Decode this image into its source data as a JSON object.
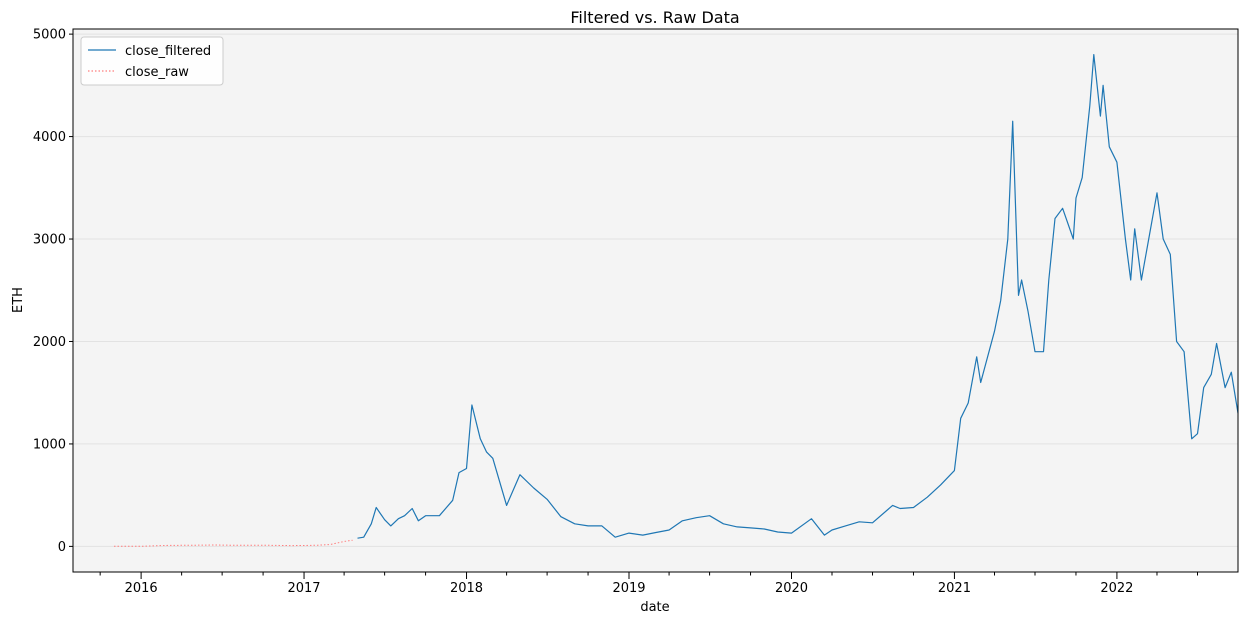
{
  "chart_data": {
    "type": "line",
    "title": "Filtered vs. Raw Data",
    "xlabel": "date",
    "ylabel": "ETH",
    "xlim": [
      "2015-08-01",
      "2022-09-30"
    ],
    "ylim": [
      -250,
      5050
    ],
    "x_ticks": [
      "2016",
      "2017",
      "2018",
      "2019",
      "2020",
      "2021",
      "2022"
    ],
    "y_ticks": [
      0,
      1000,
      2000,
      3000,
      4000,
      5000
    ],
    "grid": "horizontal",
    "legend": "top-left",
    "colors": {
      "filtered": "#1f77b4",
      "raw": "#ff7f7f",
      "background": "#f4f4f4"
    },
    "series": [
      {
        "name": "close_filtered",
        "style": "solid",
        "x": [
          "2017-05-01",
          "2017-05-15",
          "2017-06-01",
          "2017-06-12",
          "2017-07-01",
          "2017-07-15",
          "2017-08-01",
          "2017-08-15",
          "2017-09-01",
          "2017-09-15",
          "2017-10-01",
          "2017-11-01",
          "2017-12-01",
          "2017-12-15",
          "2018-01-01",
          "2018-01-13",
          "2018-02-01",
          "2018-02-15",
          "2018-03-01",
          "2018-04-01",
          "2018-05-01",
          "2018-06-01",
          "2018-07-01",
          "2018-08-01",
          "2018-09-01",
          "2018-10-01",
          "2018-11-01",
          "2018-12-01",
          "2019-01-01",
          "2019-02-01",
          "2019-03-01",
          "2019-04-01",
          "2019-05-01",
          "2019-06-01",
          "2019-07-01",
          "2019-08-01",
          "2019-09-01",
          "2019-10-01",
          "2019-11-01",
          "2019-12-01",
          "2020-01-01",
          "2020-02-15",
          "2020-03-15",
          "2020-04-01",
          "2020-05-01",
          "2020-06-01",
          "2020-07-01",
          "2020-08-15",
          "2020-09-01",
          "2020-10-01",
          "2020-11-01",
          "2020-12-01",
          "2021-01-01",
          "2021-01-15",
          "2021-02-01",
          "2021-02-20",
          "2021-03-01",
          "2021-04-01",
          "2021-04-15",
          "2021-05-01",
          "2021-05-12",
          "2021-05-25",
          "2021-06-01",
          "2021-06-15",
          "2021-07-01",
          "2021-07-20",
          "2021-08-01",
          "2021-08-15",
          "2021-09-01",
          "2021-09-25",
          "2021-10-01",
          "2021-10-15",
          "2021-11-01",
          "2021-11-10",
          "2021-11-25",
          "2021-12-01",
          "2021-12-15",
          "2022-01-01",
          "2022-01-20",
          "2022-02-01",
          "2022-02-10",
          "2022-02-25",
          "2022-03-01",
          "2022-04-01",
          "2022-04-15",
          "2022-05-01",
          "2022-05-15",
          "2022-06-01",
          "2022-06-18",
          "2022-07-01",
          "2022-07-15",
          "2022-08-01",
          "2022-08-13",
          "2022-09-01",
          "2022-09-15",
          "2022-09-30"
        ],
        "y": [
          80,
          90,
          220,
          380,
          260,
          200,
          270,
          300,
          370,
          250,
          300,
          300,
          450,
          720,
          760,
          1380,
          1050,
          920,
          860,
          400,
          700,
          570,
          460,
          290,
          220,
          200,
          200,
          90,
          130,
          110,
          135,
          160,
          250,
          280,
          300,
          220,
          190,
          180,
          170,
          140,
          130,
          270,
          110,
          160,
          200,
          240,
          230,
          400,
          370,
          380,
          480,
          600,
          740,
          1250,
          1400,
          1850,
          1600,
          2100,
          2400,
          3000,
          4150,
          2450,
          2600,
          2300,
          1900,
          1900,
          2600,
          3200,
          3300,
          3000,
          3400,
          3600,
          4300,
          4800,
          4200,
          4500,
          3900,
          3750,
          3000,
          2600,
          3100,
          2600,
          2700,
          3450,
          3000,
          2850,
          2000,
          1900,
          1050,
          1100,
          1550,
          1680,
          1980,
          1550,
          1700,
          1300
        ]
      },
      {
        "name": "close_raw",
        "style": "dotted",
        "x": [
          "2015-11-01",
          "2016-01-01",
          "2016-03-01",
          "2016-05-01",
          "2016-06-15",
          "2016-08-01",
          "2016-10-01",
          "2016-12-01",
          "2017-01-01",
          "2017-02-01",
          "2017-03-01",
          "2017-04-01",
          "2017-04-20"
        ],
        "y": [
          1,
          1,
          10,
          12,
          14,
          11,
          12,
          8,
          9,
          12,
          18,
          48,
          60
        ]
      }
    ]
  }
}
